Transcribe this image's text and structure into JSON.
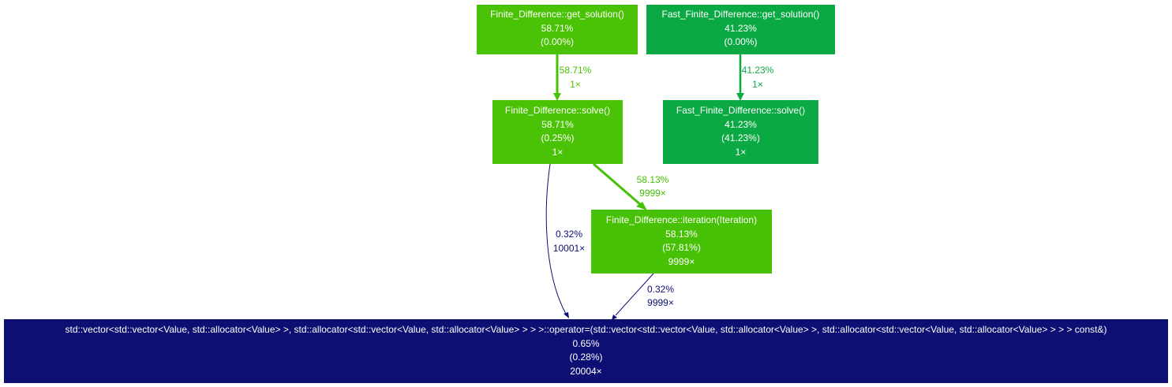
{
  "nodes": {
    "fd_get_solution": {
      "name": "Finite_Difference::get_solution()",
      "total": "58.71%",
      "self": "(0.00%)",
      "calls": "",
      "color": "#4ac205"
    },
    "ffd_get_solution": {
      "name": "Fast_Finite_Difference::get_solution()",
      "total": "41.23%",
      "self": "(0.00%)",
      "calls": "",
      "color": "#0ba943"
    },
    "fd_solve": {
      "name": "Finite_Difference::solve()",
      "total": "58.71%",
      "self": "(0.25%)",
      "calls": "1×",
      "color": "#4ac205"
    },
    "ffd_solve": {
      "name": "Fast_Finite_Difference::solve()",
      "total": "41.23%",
      "self": "(41.23%)",
      "calls": "1×",
      "color": "#0ba943"
    },
    "fd_iteration": {
      "name": "Finite_Difference::iteration(Iteration)",
      "total": "58.13%",
      "self": "(57.81%)",
      "calls": "9999×",
      "color": "#47c106"
    },
    "vector_assign": {
      "name": "std::vector<std::vector<Value, std::allocator<Value> >, std::allocator<std::vector<Value, std::allocator<Value> > > >::operator=(std::vector<std::vector<Value, std::allocator<Value> >, std::allocator<std::vector<Value, std::allocator<Value> > > > const&)",
      "total": "0.65%",
      "self": "(0.28%)",
      "calls": "20004×",
      "color": "#0d0f73"
    }
  },
  "edges": {
    "e_fdget_fdsolve": {
      "percent": "58.71%",
      "calls": "1×",
      "color": "#4ac205"
    },
    "e_ffdget_ffdsolve": {
      "percent": "41.23%",
      "calls": "1×",
      "color": "#0ba943"
    },
    "e_fdsolve_iter": {
      "percent": "58.13%",
      "calls": "9999×",
      "color": "#47c106"
    },
    "e_fdsolve_vector": {
      "percent": "0.32%",
      "calls": "10001×",
      "color": "#0d0f73"
    },
    "e_iter_vector": {
      "percent": "0.32%",
      "calls": "9999×",
      "color": "#0d0f73"
    }
  }
}
